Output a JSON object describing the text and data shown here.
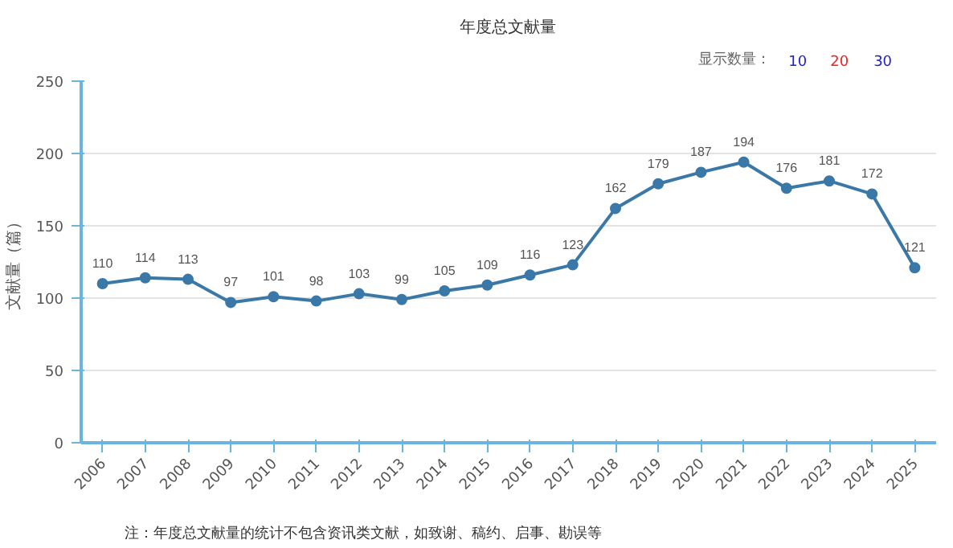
{
  "chart_data": {
    "type": "line",
    "title": "年度总文献量",
    "ylabel": "文献量（篇）",
    "categories": [
      "2006",
      "2007",
      "2008",
      "2009",
      "2010",
      "2011",
      "2012",
      "2013",
      "2014",
      "2015",
      "2016",
      "2017",
      "2018",
      "2019",
      "2020",
      "2021",
      "2022",
      "2023",
      "2024",
      "2025"
    ],
    "series": [
      {
        "color": "#3a78a8",
        "values": [
          110,
          114,
          113,
          97,
          101,
          98,
          103,
          99,
          105,
          109,
          116,
          123,
          162,
          179,
          187,
          194,
          176,
          181,
          172,
          121
        ]
      }
    ],
    "ylim": [
      0,
      250
    ],
    "yticks": [
      0,
      50,
      100,
      150,
      200,
      250
    ],
    "grid": "y",
    "marker": "circle",
    "line_style": "solid",
    "data_labels": true,
    "annotations": [
      "显示数量：",
      "10",
      "20",
      "30",
      "注：年度总文献量的统计不包含资讯类文献，如致谢、稿约、启事、勘误等"
    ]
  }
}
